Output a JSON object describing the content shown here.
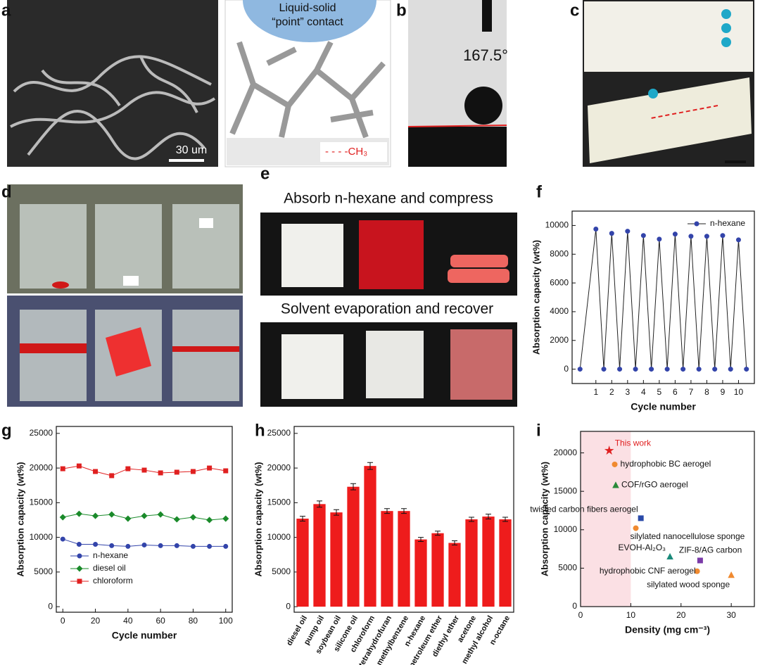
{
  "panels": {
    "letters": [
      "a",
      "b",
      "c",
      "d",
      "e",
      "f",
      "g",
      "h",
      "i"
    ]
  },
  "texts": {
    "contact_line1": "Liquid-solid",
    "contact_line2": "“point” contact",
    "methyl": "- - - -CH₃",
    "scale_a": "30 um",
    "angle": "167.5°",
    "absorb": "Absorb n-hexane and compress",
    "recover": "Solvent evaporation and recover"
  },
  "chart_data": [
    {
      "type": "line",
      "ylabel": "Absorption capacity (wt%)",
      "xlabel": "Cycle number",
      "x": [
        0,
        1,
        1.5,
        2,
        2.5,
        3,
        3.5,
        4,
        4.5,
        5,
        5.5,
        6,
        6.5,
        7,
        7.5,
        8,
        8.5,
        9,
        9.5,
        10,
        10.5
      ],
      "series": [
        {
          "name": "n-hexane",
          "color": "#3344aa",
          "values": [
            0,
            9750,
            0,
            9450,
            0,
            9600,
            0,
            9300,
            0,
            9050,
            0,
            9400,
            0,
            9250,
            0,
            9250,
            0,
            9300,
            0,
            9000,
            0
          ]
        }
      ],
      "xlim": [
        -0.5,
        11
      ],
      "xticks": [
        1,
        2,
        3,
        4,
        5,
        6,
        7,
        8,
        9,
        10
      ],
      "ylim": [
        -1000,
        11000
      ],
      "yticks": [
        0,
        2000,
        4000,
        6000,
        8000,
        10000
      ],
      "legend": "top-right"
    },
    {
      "type": "line",
      "ylabel": "Absorption capacity (wt%)",
      "xlabel": "Cycle number",
      "x": [
        0,
        10,
        20,
        30,
        40,
        50,
        60,
        70,
        80,
        90,
        100
      ],
      "series": [
        {
          "name": "n-hexane",
          "color": "#3344aa",
          "marker": "circle",
          "values": [
            9750,
            9000,
            9000,
            8800,
            8700,
            8900,
            8800,
            8800,
            8700,
            8700,
            8700
          ]
        },
        {
          "name": "diesel oil",
          "color": "#1a8a2a",
          "marker": "diamond",
          "values": [
            12900,
            13400,
            13100,
            13300,
            12700,
            13100,
            13300,
            12600,
            12900,
            12500,
            12700
          ]
        },
        {
          "name": "chloroform",
          "color": "#e02020",
          "marker": "square",
          "values": [
            19900,
            20300,
            19500,
            18900,
            19900,
            19700,
            19300,
            19400,
            19500,
            20000,
            19600
          ]
        }
      ],
      "xlim": [
        -4,
        104
      ],
      "xticks": [
        0,
        20,
        40,
        60,
        80,
        100
      ],
      "ylim": [
        -800,
        26000
      ],
      "yticks": [
        0,
        5000,
        10000,
        15000,
        20000,
        25000
      ],
      "legend": "bottom-left"
    },
    {
      "type": "bar",
      "ylabel": "Absorption capacity (wt%)",
      "categories": [
        "diesel oil",
        "pump oil",
        "soybean oil",
        "silicone oil",
        "chloroform",
        "tetrahydrofuran",
        "methylbenzene",
        "n-hexane",
        "petroleum ether",
        "diethyl ether",
        "acetone",
        "methyl alcohol",
        "n-octane"
      ],
      "values": [
        12700,
        14800,
        13600,
        17300,
        20300,
        13800,
        13800,
        9700,
        10600,
        9200,
        12600,
        13000,
        12600
      ],
      "errors": [
        350,
        450,
        400,
        450,
        500,
        350,
        350,
        300,
        300,
        300,
        300,
        350,
        300
      ],
      "color": "#ee1c1c",
      "ylim": [
        -800,
        26000
      ],
      "yticks": [
        0,
        5000,
        10000,
        15000,
        20000,
        25000
      ]
    },
    {
      "type": "scatter",
      "ylabel": "Absorption capacity (wt%)",
      "xlabel": "Density (mg cm⁻³)",
      "shaded_xrange": [
        0,
        10
      ],
      "points": [
        {
          "name": "This work",
          "x": 5.7,
          "y": 20300,
          "color": "#e02020",
          "marker": "star"
        },
        {
          "name": "hydrophobic BC aerogel",
          "x": 6.8,
          "y": 18500,
          "color": "#f08a30",
          "marker": "circle"
        },
        {
          "name": "COF/rGO aerogel",
          "x": 7,
          "y": 15800,
          "color": "#2a8a3a",
          "marker": "triangle"
        },
        {
          "name": "twisted carbon fibers aerogel",
          "x": 12,
          "y": 11500,
          "color": "#2a4aa8",
          "marker": "square"
        },
        {
          "name": "silylated nanocellulose sponge",
          "x": 11,
          "y": 10200,
          "color": "#f08a30",
          "marker": "circle"
        },
        {
          "name": "EVOH-Al₂O₃",
          "x": 17.8,
          "y": 6500,
          "color": "#1a8a7a",
          "marker": "triangle"
        },
        {
          "name": "ZIF-8/AG carbon",
          "x": 23.8,
          "y": 6000,
          "color": "#7a3aa8",
          "marker": "square"
        },
        {
          "name": "hydrophobic CNF aerogel",
          "x": 23.2,
          "y": 4600,
          "color": "#f08a30",
          "marker": "circle"
        },
        {
          "name": "silylated wood sponge",
          "x": 30,
          "y": 4100,
          "color": "#f08a30",
          "marker": "triangle"
        }
      ],
      "xlim": [
        0,
        34.6
      ],
      "xticks": [
        0,
        10,
        20,
        30
      ],
      "ylim": [
        0,
        22800
      ],
      "yticks": [
        0,
        5000,
        10000,
        15000,
        20000
      ]
    }
  ]
}
